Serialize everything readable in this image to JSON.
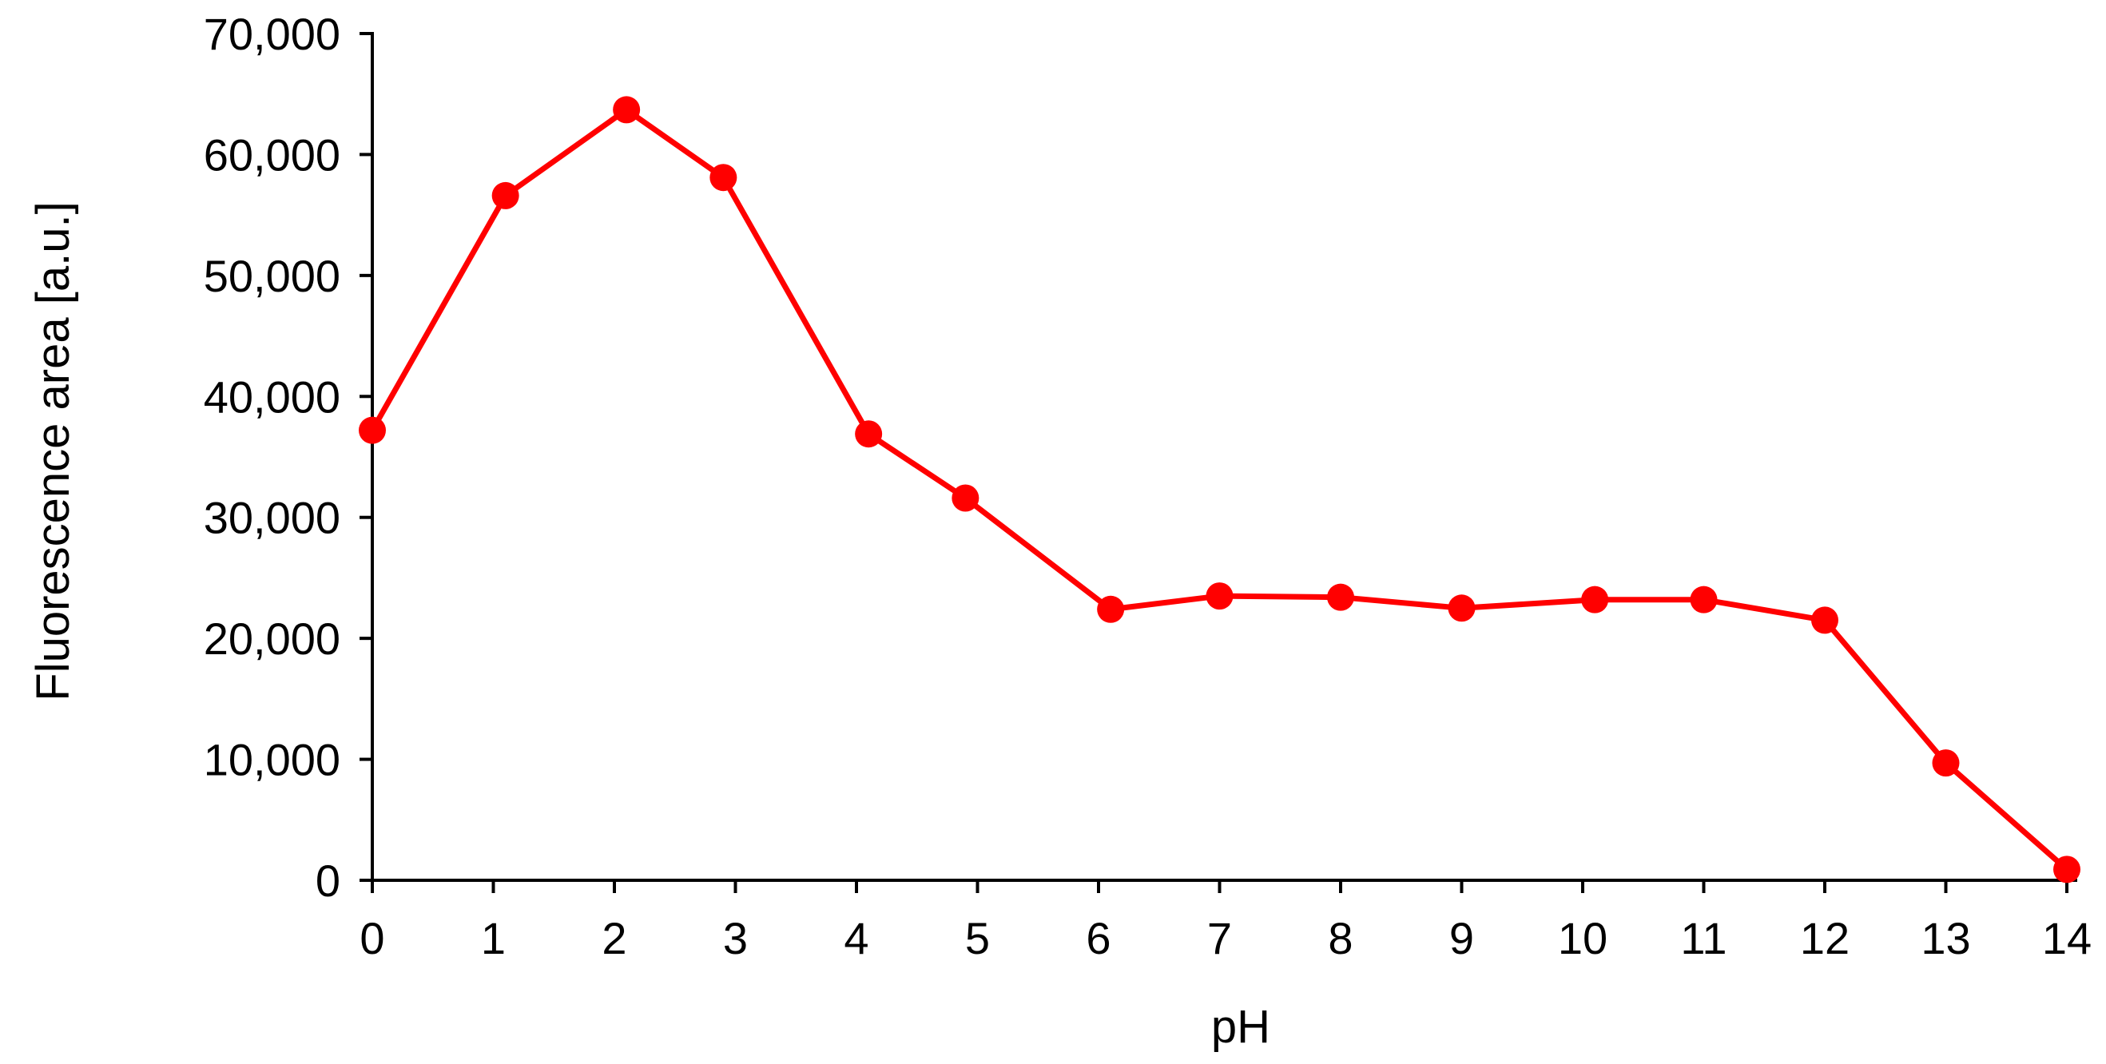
{
  "chart_data": {
    "type": "line",
    "title": "",
    "xlabel": "pH",
    "ylabel": "Fluorescence area [a.u.]",
    "xlim": [
      0,
      14
    ],
    "ylim": [
      0,
      70000
    ],
    "x_ticks": [
      "0",
      "1",
      "2",
      "3",
      "4",
      "5",
      "6",
      "7",
      "8",
      "9",
      "10",
      "11",
      "12",
      "13",
      "14"
    ],
    "y_ticks": [
      "0",
      "10,000",
      "20,000",
      "30,000",
      "40,000",
      "50,000",
      "60,000",
      "70,000"
    ],
    "grid": false,
    "legend": "none",
    "series": [
      {
        "color": "#ff0000",
        "marker": "circle",
        "points": [
          {
            "x": 0,
            "y": 37200
          },
          {
            "x": 1.1,
            "y": 56600
          },
          {
            "x": 2.1,
            "y": 63700
          },
          {
            "x": 2.9,
            "y": 58100
          },
          {
            "x": 4.1,
            "y": 36900
          },
          {
            "x": 4.9,
            "y": 31600
          },
          {
            "x": 6.1,
            "y": 22400
          },
          {
            "x": 7,
            "y": 23500
          },
          {
            "x": 8,
            "y": 23400
          },
          {
            "x": 9,
            "y": 22500
          },
          {
            "x": 10.1,
            "y": 23200
          },
          {
            "x": 11,
            "y": 23200
          },
          {
            "x": 12,
            "y": 21500
          },
          {
            "x": 13,
            "y": 9700
          },
          {
            "x": 14,
            "y": 900
          }
        ]
      }
    ]
  }
}
